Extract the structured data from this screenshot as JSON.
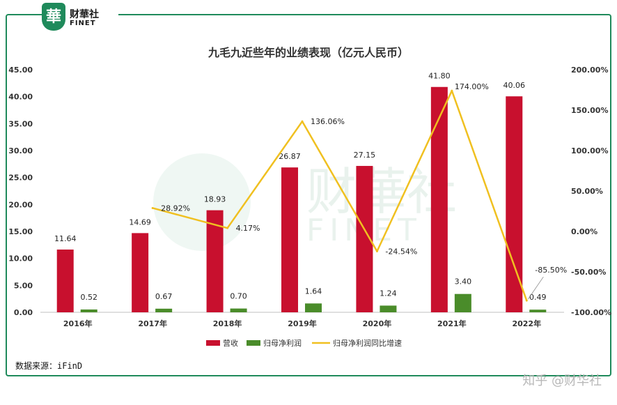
{
  "brand": {
    "badge": "華",
    "name_cn": "财華社",
    "name_en": "FINET"
  },
  "source_note": "数据来源：iFinD",
  "credit": "知乎 @财华社",
  "watermark": {
    "cn": "财華社",
    "en": "FINET"
  },
  "colors": {
    "revenue": "#c8102e",
    "profit": "#4a8c2a",
    "growth": "#f0c020",
    "frame": "#1f8a5b"
  },
  "chart_data": {
    "type": "bar",
    "title": "九毛九近些年的业绩表现（亿元人民币）",
    "categories": [
      "2016年",
      "2017年",
      "2018年",
      "2019年",
      "2020年",
      "2021年",
      "2022年"
    ],
    "series": [
      {
        "name": "营收",
        "type": "bar",
        "axis": "left",
        "values": [
          11.64,
          14.69,
          18.93,
          26.87,
          27.15,
          41.8,
          40.06
        ],
        "labels": [
          "11.64",
          "14.69",
          "18.93",
          "26.87",
          "27.15",
          "41.80",
          "40.06"
        ]
      },
      {
        "name": "归母净利润",
        "type": "bar",
        "axis": "left",
        "values": [
          0.52,
          0.67,
          0.7,
          1.64,
          1.24,
          3.4,
          0.49
        ],
        "labels": [
          "0.52",
          "0.67",
          "0.70",
          "1.64",
          "1.24",
          "3.40",
          "0.49"
        ]
      },
      {
        "name": "归母净利润同比增速",
        "type": "line",
        "axis": "right",
        "x": [
          "2017年",
          "2018年",
          "2019年",
          "2020年",
          "2021年",
          "2022年"
        ],
        "values": [
          28.92,
          4.17,
          136.06,
          -24.54,
          174.0,
          -85.5
        ],
        "labels": [
          "28.92%",
          "4.17%",
          "136.06%",
          "-24.54%",
          "174.00%",
          "-85.50%"
        ]
      }
    ],
    "y_left": {
      "min": 0,
      "max": 45,
      "ticks": [
        "0.00",
        "5.00",
        "10.00",
        "15.00",
        "20.00",
        "25.00",
        "30.00",
        "35.00",
        "40.00",
        "45.00"
      ]
    },
    "y_right": {
      "min": -100,
      "max": 200,
      "ticks": [
        "-100.00%",
        "-50.00%",
        "0.00%",
        "50.00%",
        "100.00%",
        "150.00%",
        "200.00%"
      ]
    },
    "grid": false,
    "legend_position": "bottom"
  }
}
